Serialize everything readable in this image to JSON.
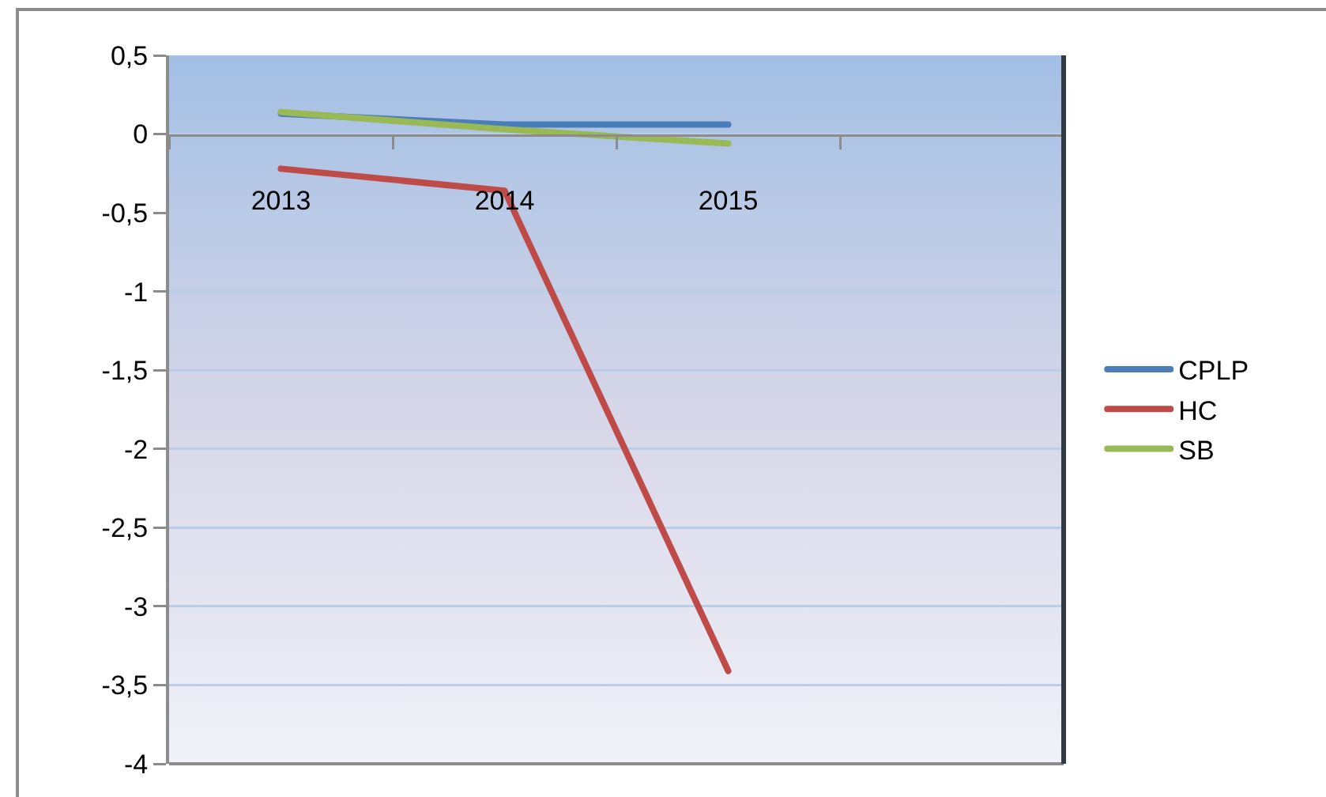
{
  "chart_data": {
    "type": "line",
    "categories": [
      "2013",
      "2014",
      "2015",
      null
    ],
    "series": [
      {
        "name": "CPLP",
        "color": "#4a7ebb",
        "values": [
          0.13,
          0.06,
          0.06,
          null
        ]
      },
      {
        "name": "HC",
        "color": "#be4b48",
        "values": [
          -0.22,
          -0.36,
          -3.41,
          null
        ]
      },
      {
        "name": "SB",
        "color": "#98b954",
        "values": [
          0.14,
          0.03,
          -0.06,
          null
        ]
      }
    ],
    "ylim": [
      -4,
      0.5
    ],
    "yticks": [
      {
        "value": 0.5,
        "label": "0,5"
      },
      0,
      {
        "value": -0.5,
        "label": "-0,5"
      },
      -1,
      {
        "value": -1.5,
        "label": "-1,5"
      },
      -2,
      {
        "value": -2.5,
        "label": "-2,5"
      },
      -3,
      {
        "value": -3.5,
        "label": "-3,5"
      },
      -4
    ],
    "grid": "y",
    "legend": "right",
    "marker": "none",
    "line_style": "solid"
  }
}
